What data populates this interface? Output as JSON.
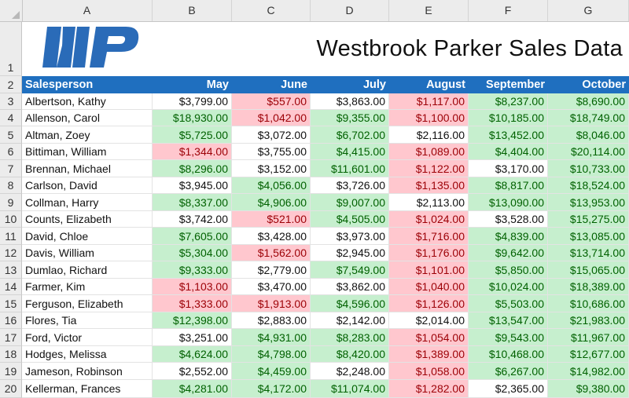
{
  "sheet": {
    "columns": [
      "A",
      "B",
      "C",
      "D",
      "E",
      "F",
      "G"
    ],
    "row_numbers": [
      "1",
      "2",
      "3",
      "4",
      "5",
      "6",
      "7",
      "8",
      "9",
      "10",
      "11",
      "12",
      "13",
      "14",
      "15",
      "16",
      "17",
      "18",
      "19",
      "20"
    ],
    "title": "Westbrook Parker Sales Data",
    "logo": {
      "icon": "wp-logo-icon",
      "text": "WP",
      "color": "#2a6bb8"
    },
    "header": [
      "Salesperson",
      "May",
      "June",
      "July",
      "August",
      "September",
      "October"
    ],
    "colors": {
      "header_bg": "#1f6fbf",
      "good_bg": "#c6efce",
      "good_text": "#006100",
      "bad_bg": "#ffc7ce",
      "bad_text": "#9c0006"
    },
    "rows": [
      {
        "name": "Albertson, Kathy",
        "values": [
          "$3,799.00",
          "$557.00",
          "$3,863.00",
          "$1,117.00",
          "$8,237.00",
          "$8,690.00"
        ],
        "status": [
          "n",
          "b",
          "n",
          "b",
          "g",
          "g"
        ]
      },
      {
        "name": "Allenson, Carol",
        "values": [
          "$18,930.00",
          "$1,042.00",
          "$9,355.00",
          "$1,100.00",
          "$10,185.00",
          "$18,749.00"
        ],
        "status": [
          "g",
          "b",
          "g",
          "b",
          "g",
          "g"
        ]
      },
      {
        "name": "Altman, Zoey",
        "values": [
          "$5,725.00",
          "$3,072.00",
          "$6,702.00",
          "$2,116.00",
          "$13,452.00",
          "$8,046.00"
        ],
        "status": [
          "g",
          "n",
          "g",
          "n",
          "g",
          "g"
        ]
      },
      {
        "name": "Bittiman, William",
        "values": [
          "$1,344.00",
          "$3,755.00",
          "$4,415.00",
          "$1,089.00",
          "$4,404.00",
          "$20,114.00"
        ],
        "status": [
          "b",
          "n",
          "g",
          "b",
          "g",
          "g"
        ]
      },
      {
        "name": "Brennan, Michael",
        "values": [
          "$8,296.00",
          "$3,152.00",
          "$11,601.00",
          "$1,122.00",
          "$3,170.00",
          "$10,733.00"
        ],
        "status": [
          "g",
          "n",
          "g",
          "b",
          "n",
          "g"
        ]
      },
      {
        "name": "Carlson, David",
        "values": [
          "$3,945.00",
          "$4,056.00",
          "$3,726.00",
          "$1,135.00",
          "$8,817.00",
          "$18,524.00"
        ],
        "status": [
          "n",
          "g",
          "n",
          "b",
          "g",
          "g"
        ]
      },
      {
        "name": "Collman, Harry",
        "values": [
          "$8,337.00",
          "$4,906.00",
          "$9,007.00",
          "$2,113.00",
          "$13,090.00",
          "$13,953.00"
        ],
        "status": [
          "g",
          "g",
          "g",
          "n",
          "g",
          "g"
        ]
      },
      {
        "name": "Counts, Elizabeth",
        "values": [
          "$3,742.00",
          "$521.00",
          "$4,505.00",
          "$1,024.00",
          "$3,528.00",
          "$15,275.00"
        ],
        "status": [
          "n",
          "b",
          "g",
          "b",
          "n",
          "g"
        ]
      },
      {
        "name": "David, Chloe",
        "values": [
          "$7,605.00",
          "$3,428.00",
          "$3,973.00",
          "$1,716.00",
          "$4,839.00",
          "$13,085.00"
        ],
        "status": [
          "g",
          "n",
          "n",
          "b",
          "g",
          "g"
        ]
      },
      {
        "name": "Davis, William",
        "values": [
          "$5,304.00",
          "$1,562.00",
          "$2,945.00",
          "$1,176.00",
          "$9,642.00",
          "$13,714.00"
        ],
        "status": [
          "g",
          "b",
          "n",
          "b",
          "g",
          "g"
        ]
      },
      {
        "name": "Dumlao, Richard",
        "values": [
          "$9,333.00",
          "$2,779.00",
          "$7,549.00",
          "$1,101.00",
          "$5,850.00",
          "$15,065.00"
        ],
        "status": [
          "g",
          "n",
          "g",
          "b",
          "g",
          "g"
        ]
      },
      {
        "name": "Farmer, Kim",
        "values": [
          "$1,103.00",
          "$3,470.00",
          "$3,862.00",
          "$1,040.00",
          "$10,024.00",
          "$18,389.00"
        ],
        "status": [
          "b",
          "n",
          "n",
          "b",
          "g",
          "g"
        ]
      },
      {
        "name": "Ferguson, Elizabeth",
        "values": [
          "$1,333.00",
          "$1,913.00",
          "$4,596.00",
          "$1,126.00",
          "$5,503.00",
          "$10,686.00"
        ],
        "status": [
          "b",
          "b",
          "g",
          "b",
          "g",
          "g"
        ]
      },
      {
        "name": "Flores, Tia",
        "values": [
          "$12,398.00",
          "$2,883.00",
          "$2,142.00",
          "$2,014.00",
          "$13,547.00",
          "$21,983.00"
        ],
        "status": [
          "g",
          "n",
          "n",
          "n",
          "g",
          "g"
        ]
      },
      {
        "name": "Ford, Victor",
        "values": [
          "$3,251.00",
          "$4,931.00",
          "$8,283.00",
          "$1,054.00",
          "$9,543.00",
          "$11,967.00"
        ],
        "status": [
          "n",
          "g",
          "g",
          "b",
          "g",
          "g"
        ]
      },
      {
        "name": "Hodges, Melissa",
        "values": [
          "$4,624.00",
          "$4,798.00",
          "$8,420.00",
          "$1,389.00",
          "$10,468.00",
          "$12,677.00"
        ],
        "status": [
          "g",
          "g",
          "g",
          "b",
          "g",
          "g"
        ]
      },
      {
        "name": "Jameson, Robinson",
        "values": [
          "$2,552.00",
          "$4,459.00",
          "$2,248.00",
          "$1,058.00",
          "$6,267.00",
          "$14,982.00"
        ],
        "status": [
          "n",
          "g",
          "n",
          "b",
          "g",
          "g"
        ]
      },
      {
        "name": "Kellerman, Frances",
        "values": [
          "$4,281.00",
          "$4,172.00",
          "$11,074.00",
          "$1,282.00",
          "$2,365.00",
          "$9,380.00"
        ],
        "status": [
          "g",
          "g",
          "g",
          "b",
          "n",
          "g"
        ]
      }
    ]
  }
}
